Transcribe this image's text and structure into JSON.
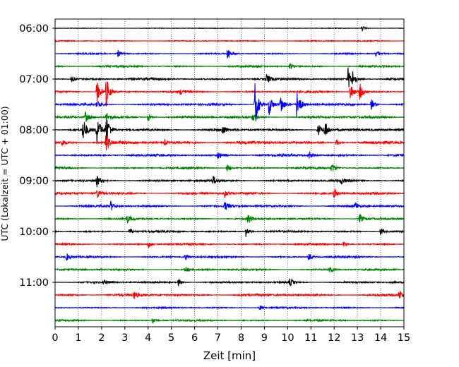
{
  "chart_data": {
    "type": "line",
    "title": "",
    "xlabel": "Zeit  [min]",
    "ylabel": "UTC (Lokalzeit = UTC + 01:00)",
    "xlim": [
      0,
      15
    ],
    "x_ticks": [
      "0",
      "1",
      "2",
      "3",
      "4",
      "5",
      "6",
      "7",
      "8",
      "9",
      "10",
      "11",
      "12",
      "13",
      "14",
      "15"
    ],
    "y_tick_labels": [
      "06:00",
      "07:00",
      "08:00",
      "09:00",
      "10:00",
      "11:00"
    ],
    "grid": "vertical dotted",
    "row_colors": [
      "#000000",
      "#ff0000",
      "#0000ff",
      "#008000"
    ],
    "rows": [
      {
        "time": "06:00",
        "amp": 0.5,
        "events": [
          [
            13.2,
            4
          ]
        ]
      },
      {
        "time": "06:15",
        "amp": 0.8,
        "events": []
      },
      {
        "time": "06:30",
        "amp": 1.0,
        "events": [
          [
            2.7,
            5
          ],
          [
            7.4,
            7
          ],
          [
            13.8,
            6
          ]
        ]
      },
      {
        "time": "06:45",
        "amp": 1.3,
        "events": [
          [
            10.1,
            5
          ]
        ]
      },
      {
        "time": "07:00",
        "amp": 1.7,
        "events": [
          [
            0.7,
            5
          ],
          [
            9.1,
            7
          ],
          [
            12.6,
            16
          ],
          [
            12.8,
            10
          ]
        ]
      },
      {
        "time": "07:15",
        "amp": 1.5,
        "events": [
          [
            1.8,
            18
          ],
          [
            2.2,
            22
          ],
          [
            5.4,
            4
          ],
          [
            12.7,
            14
          ],
          [
            13.1,
            12
          ]
        ]
      },
      {
        "time": "07:30",
        "amp": 1.6,
        "events": [
          [
            1.8,
            7
          ],
          [
            8.6,
            34
          ],
          [
            9.2,
            16
          ],
          [
            9.7,
            14
          ],
          [
            10.4,
            26
          ],
          [
            13.6,
            8
          ]
        ]
      },
      {
        "time": "07:45",
        "amp": 1.8,
        "events": [
          [
            1.3,
            8
          ],
          [
            2.2,
            7
          ],
          [
            4.0,
            6
          ],
          [
            8.5,
            5
          ]
        ]
      },
      {
        "time": "08:00",
        "amp": 1.8,
        "events": [
          [
            1.2,
            18
          ],
          [
            1.8,
            22
          ],
          [
            2.2,
            24
          ],
          [
            7.2,
            7
          ],
          [
            11.3,
            10
          ],
          [
            11.6,
            14
          ]
        ]
      },
      {
        "time": "08:15",
        "amp": 2.2,
        "events": [
          [
            0.3,
            5
          ],
          [
            2.2,
            14
          ],
          [
            4.7,
            4
          ],
          [
            12.1,
            5
          ]
        ]
      },
      {
        "time": "08:30",
        "amp": 1.7,
        "events": [
          [
            7.0,
            6
          ],
          [
            10.9,
            6
          ]
        ]
      },
      {
        "time": "08:45",
        "amp": 1.5,
        "events": [
          [
            7.4,
            6
          ],
          [
            11.9,
            7
          ]
        ]
      },
      {
        "time": "09:00",
        "amp": 1.6,
        "events": [
          [
            1.8,
            8
          ],
          [
            6.8,
            6
          ],
          [
            12.3,
            5
          ]
        ]
      },
      {
        "time": "09:15",
        "amp": 1.7,
        "events": [
          [
            1.8,
            8
          ],
          [
            7.3,
            6
          ],
          [
            12.0,
            7
          ]
        ]
      },
      {
        "time": "09:30",
        "amp": 1.5,
        "events": [
          [
            2.4,
            7
          ],
          [
            7.3,
            7
          ],
          [
            12.9,
            6
          ]
        ]
      },
      {
        "time": "09:45",
        "amp": 1.5,
        "events": [
          [
            3.1,
            6
          ],
          [
            8.3,
            8
          ],
          [
            13.1,
            8
          ]
        ]
      },
      {
        "time": "10:00",
        "amp": 1.5,
        "events": [
          [
            3.2,
            5
          ],
          [
            8.2,
            8
          ],
          [
            14.0,
            6
          ]
        ]
      },
      {
        "time": "10:15",
        "amp": 1.4,
        "events": [
          [
            4.0,
            6
          ],
          [
            12.4,
            4
          ]
        ]
      },
      {
        "time": "10:30",
        "amp": 1.3,
        "events": [
          [
            0.5,
            5
          ],
          [
            5.6,
            5
          ],
          [
            10.9,
            6
          ]
        ]
      },
      {
        "time": "10:45",
        "amp": 1.4,
        "events": [
          [
            5.6,
            5
          ],
          [
            11.8,
            6
          ]
        ]
      },
      {
        "time": "11:00",
        "amp": 1.3,
        "events": [
          [
            2.1,
            4
          ],
          [
            5.3,
            5
          ],
          [
            10.1,
            6
          ]
        ]
      },
      {
        "time": "11:15",
        "amp": 1.8,
        "events": [
          [
            3.4,
            5
          ],
          [
            14.8,
            7
          ]
        ]
      },
      {
        "time": "11:30",
        "amp": 1.1,
        "events": [
          [
            8.8,
            4
          ]
        ]
      },
      {
        "time": "11:45",
        "amp": 1.3,
        "events": [
          [
            4.2,
            5
          ]
        ]
      }
    ]
  }
}
